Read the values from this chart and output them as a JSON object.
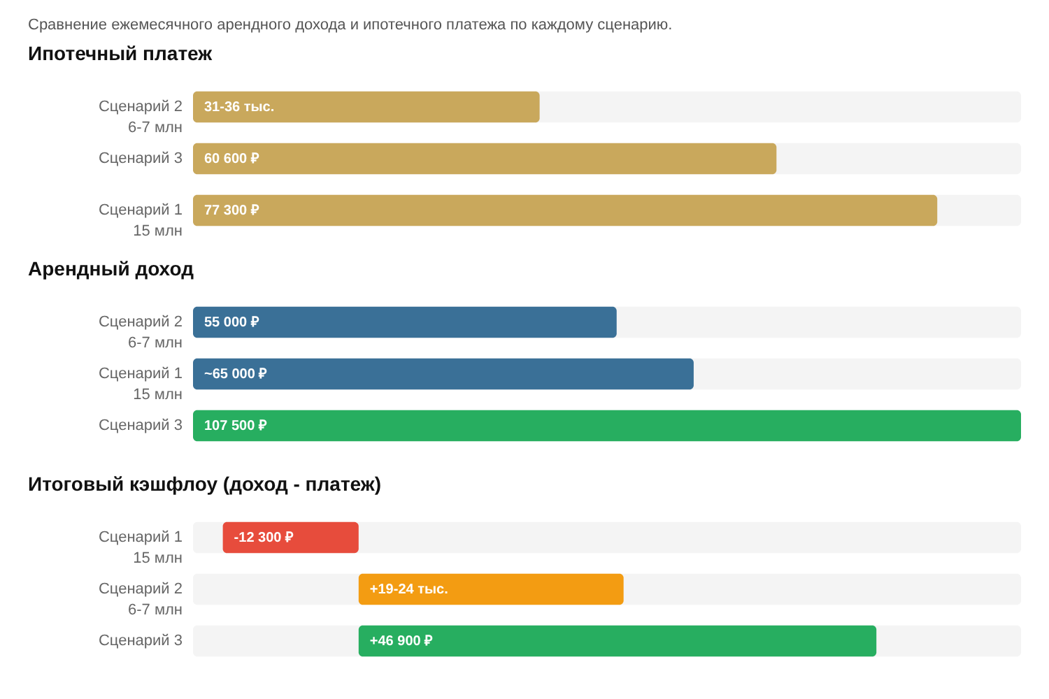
{
  "chart_data": [
    {
      "type": "bar",
      "orientation": "horizontal",
      "title": "Ипотечный платеж",
      "annotations": [
        "Сравнение ежемесячного арендного дохода и ипотечного платежа по каждому сценарию."
      ],
      "categories": [
        "Сценарий 2\n6-7 млн",
        "Сценарий 3",
        "Сценарий 1\n15 млн"
      ],
      "values": [
        36000,
        60600,
        77300
      ],
      "xlim": [
        0,
        86000
      ],
      "color": "#c9a85c",
      "value_labels": [
        "31-36 тыс.",
        "60 600 ₽",
        "77 300 ₽"
      ]
    },
    {
      "type": "bar",
      "orientation": "horizontal",
      "title": "Арендный доход",
      "categories": [
        "Сценарий 2\n6-7 млн",
        "Сценарий 1\n15 млн",
        "Сценарий 3"
      ],
      "values": [
        55000,
        65000,
        107500
      ],
      "xlim": [
        0,
        107500
      ],
      "colors": [
        "#3a7097",
        "#3a7097",
        "#27ae60"
      ],
      "value_labels": [
        "55 000 ₽",
        "~65 000 ₽",
        "107 500 ₽"
      ]
    },
    {
      "type": "bar",
      "orientation": "horizontal",
      "title": "Итоговый кэшфлоу (доход - платеж)",
      "categories": [
        "Сценарий 1\n15 млн",
        "Сценарий 2\n6-7 млн",
        "Сценарий 3"
      ],
      "values": [
        -12300,
        24000,
        46900
      ],
      "xlim": [
        -15000,
        60000
      ],
      "colors": [
        "#e74c3c",
        "#f39c12",
        "#27ae60"
      ],
      "value_labels": [
        "-12 300 ₽",
        "+19-24 тыс.",
        "+46 900 ₽"
      ]
    }
  ]
}
